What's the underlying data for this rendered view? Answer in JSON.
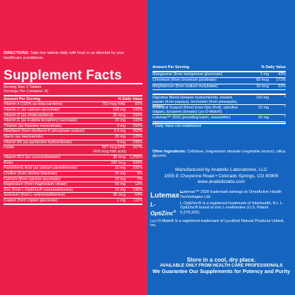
{
  "left": {
    "directions_label": "DIRECTIONS:",
    "directions_text": " Take two tablets daily with food or as directed by your healthcare practitioner.",
    "title": "Supplement Facts",
    "serving_size": "Serving Size 2 Tablets",
    "servings_per_container": "Servings Per Container 30",
    "amount_header": "Amount Per Serving",
    "dv_header": "% Daily Value",
    "rows": [
      {
        "name": "Vitamin A (100% as beta-carotene)",
        "amount": "750 mcg RAE",
        "dv": "83%"
      },
      {
        "name": "Vitamin C (as calcium ascorbate)",
        "amount": "120 mg",
        "dv": "133%"
      },
      {
        "name": "Vitamin D (as cholecalciferol)",
        "amount": "20 mcg",
        "dv": "100%"
      },
      {
        "name": "Vitamin E (as d-alpha tocopheryl succinate)",
        "amount": "20 mg",
        "dv": "133%"
      },
      {
        "name": "Thiamin (as thiamine mononitrate)",
        "amount": "3 mg",
        "dv": "250%"
      },
      {
        "name": "Riboflavin (from riboflavin-5'-phosphate sodium)",
        "amount": "3.4 mg",
        "dv": "262%"
      },
      {
        "name": "Niacin (as niacinamide)",
        "amount": "20 mg",
        "dv": "125%"
      },
      {
        "name": "Vitamin B6 (as pyridoxine hydrochloride)",
        "amount": "4 mg",
        "dv": "235%"
      },
      {
        "name": "Folate",
        "amount": "667 mcg DFE",
        "amount2": "(400 mcg folic acid)",
        "dv": "167%",
        "tall": true
      },
      {
        "name": "Vitamin B12 (as cyanocobalamin)",
        "amount": "30 mcg",
        "dv": "1,250%"
      },
      {
        "name": "Biotin",
        "amount": "150 mcg",
        "dv": "500%"
      },
      {
        "name": "Pantothenic Acid (as calcium pantothenate)",
        "amount": "10 mg",
        "dv": "200%"
      },
      {
        "name": "Choline (from choline bitartrate)",
        "amount": "25 mg",
        "dv": "5%"
      },
      {
        "name": "Calcium (from calcium ascorbate)",
        "amount": "16 mg",
        "dv": "1%"
      },
      {
        "name": "Magnesium (from magnesium citrate)",
        "amount": "50 mg",
        "dv": "12%"
      },
      {
        "name": "Zinc (from L-OptiZinc® monomethionine)",
        "amount": "15 mg",
        "dv": "136%"
      },
      {
        "name": "Selenium (from L-selenomethionine)",
        "amount": "35 mcg",
        "dv": "64%"
      },
      {
        "name": "Copper (from copper gluconate)",
        "amount": "1 mg",
        "dv": "111%"
      }
    ]
  },
  "right": {
    "amount_header": "Amount Per Serving",
    "dv_header": "% Daily Value",
    "rows": [
      {
        "name": "Manganese (from manganese gluconate)",
        "amount": "1 mg",
        "dv": "43%"
      },
      {
        "name": "Chromium (from chromium picolinate)",
        "amount": "60 mcg",
        "dv": "171%"
      },
      {
        "name": "Molybdenum (from sodium molybdate)",
        "amount": "10 mcg",
        "dv": "22%"
      }
    ],
    "proprietary": [
      {
        "name": "Digestive Blend (betaine hydrochloride, inositol, papain (from papaya), bromelain (from pineapple), lipase)",
        "amount": "110 mg",
        "dv": "*",
        "two": true
      },
      {
        "name": "Botanical Support Blend (rose hips (fruit), spirulina (algae), lycopene (tomato) Lyc-O-Mato®)",
        "amount": "22 mg",
        "dv": "*",
        "two": true
      },
      {
        "name": "Lutemax™ 2020 (providing lutein, zeaxanthin)",
        "amount": "20 mg",
        "dv": "*",
        "two": false
      }
    ],
    "footnote": "* Daily Value not established.",
    "other_label": "Other ingredients:",
    "other_text": " Cellulose, magnesium stearate (vegetable source), silica, glycerin.",
    "mfr_line1": "Manufactured by Anabolic Laboratories, LLC",
    "mfr_line2": "1555 E Cheyenne Road • Colorado Springs, CO 80905",
    "mfr_line3": "www.anaboliclabs.com",
    "trademarks": [
      {
        "logo": "Lutemax",
        "text": "Lutemax™ 2020 trademark belongs to OmniActive Health Technologies Ltd."
      },
      {
        "logo": "L-OptiZinc",
        "text": "L-OptiZinc® is a registered trademark of Interhealth, N.I. L-OptiZinc® brand of zinc L-methionine (U.S. Patent 5,278,329)."
      },
      {
        "logo": "",
        "text": "Lyc-O-Mato® is a registered trademark of LycoRed Natural Products United, Inc."
      }
    ],
    "store": "Store in a cool, dry place.",
    "available": "AVAILABLE ONLY FROM HEALTH CARE PROFESSIONALS",
    "guarantee": "We Guarantee Our Supplements for Potency and Purity"
  }
}
